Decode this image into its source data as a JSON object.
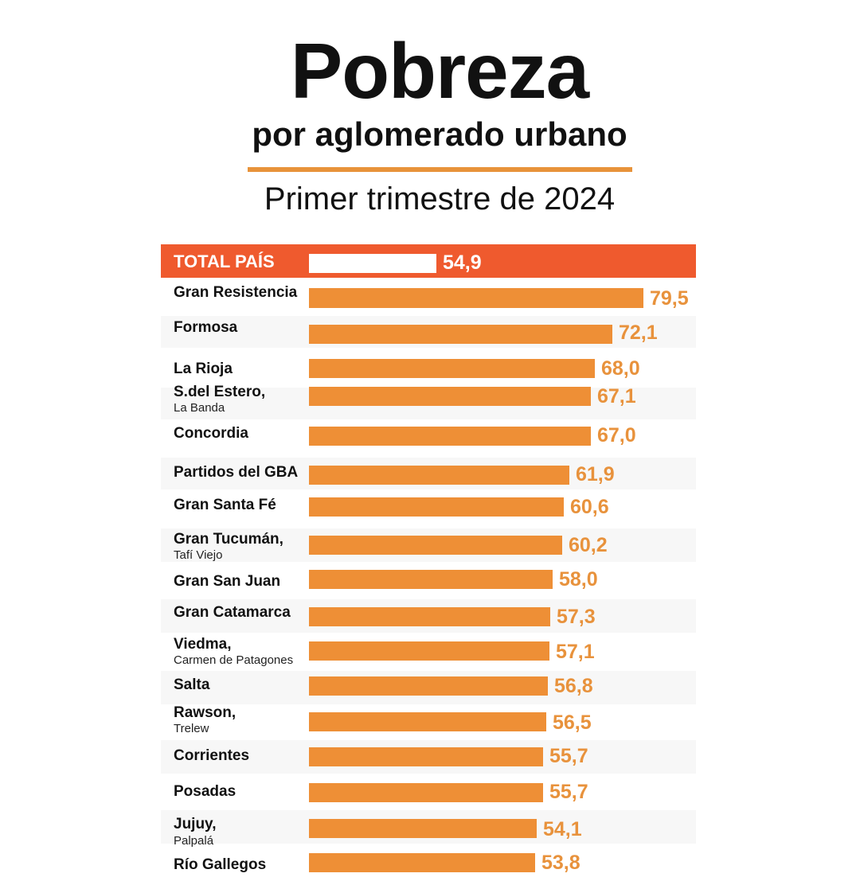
{
  "header": {
    "title": "Pobreza",
    "subtitle": "por aglomerado urbano",
    "period": "Primer trimestre de 2024"
  },
  "colors": {
    "bar": "#ee8f36",
    "value_text": "#e8923c",
    "total_band": "#ef5a2e",
    "rule": "#e8933a"
  },
  "chart_data": {
    "type": "bar",
    "orientation": "horizontal",
    "xlim": [
      0,
      79.5
    ],
    "total": {
      "label": "TOTAL PAÍS",
      "value": 54.9,
      "value_text": "54,9"
    },
    "rows": [
      {
        "label": "Gran Resistencia",
        "sublabel": "",
        "value": 79.5,
        "value_text": "79,5"
      },
      {
        "label": "Formosa",
        "sublabel": "",
        "value": 72.1,
        "value_text": "72,1"
      },
      {
        "label": "La Rioja",
        "sublabel": "",
        "value": 68.0,
        "value_text": "68,0"
      },
      {
        "label": "S.del Estero,",
        "sublabel": "La Banda",
        "value": 67.1,
        "value_text": "67,1"
      },
      {
        "label": "Concordia",
        "sublabel": "",
        "value": 67.0,
        "value_text": "67,0"
      },
      {
        "label": "Partidos del GBA",
        "sublabel": "",
        "value": 61.9,
        "value_text": "61,9"
      },
      {
        "label": "Gran Santa Fé",
        "sublabel": "",
        "value": 60.6,
        "value_text": "60,6"
      },
      {
        "label": "Gran Tucumán,",
        "sublabel": "Tafí Viejo",
        "value": 60.2,
        "value_text": "60,2"
      },
      {
        "label": "Gran San Juan",
        "sublabel": "",
        "value": 58.0,
        "value_text": "58,0"
      },
      {
        "label": "Gran Catamarca",
        "sublabel": "",
        "value": 57.3,
        "value_text": "57,3"
      },
      {
        "label": "Viedma,",
        "sublabel": "Carmen de Patagones",
        "value": 57.1,
        "value_text": "57,1"
      },
      {
        "label": "Salta",
        "sublabel": "",
        "value": 56.8,
        "value_text": "56,8"
      },
      {
        "label": "Rawson,",
        "sublabel": "Trelew",
        "value": 56.5,
        "value_text": "56,5"
      },
      {
        "label": "Corrientes",
        "sublabel": "",
        "value": 55.7,
        "value_text": "55,7"
      },
      {
        "label": "Posadas",
        "sublabel": "",
        "value": 55.7,
        "value_text": "55,7"
      },
      {
        "label": "Jujuy,",
        "sublabel": "Palpalá",
        "value": 54.1,
        "value_text": "54,1"
      },
      {
        "label": "Río Gallegos",
        "sublabel": "",
        "value": 53.8,
        "value_text": "53,8"
      }
    ]
  }
}
